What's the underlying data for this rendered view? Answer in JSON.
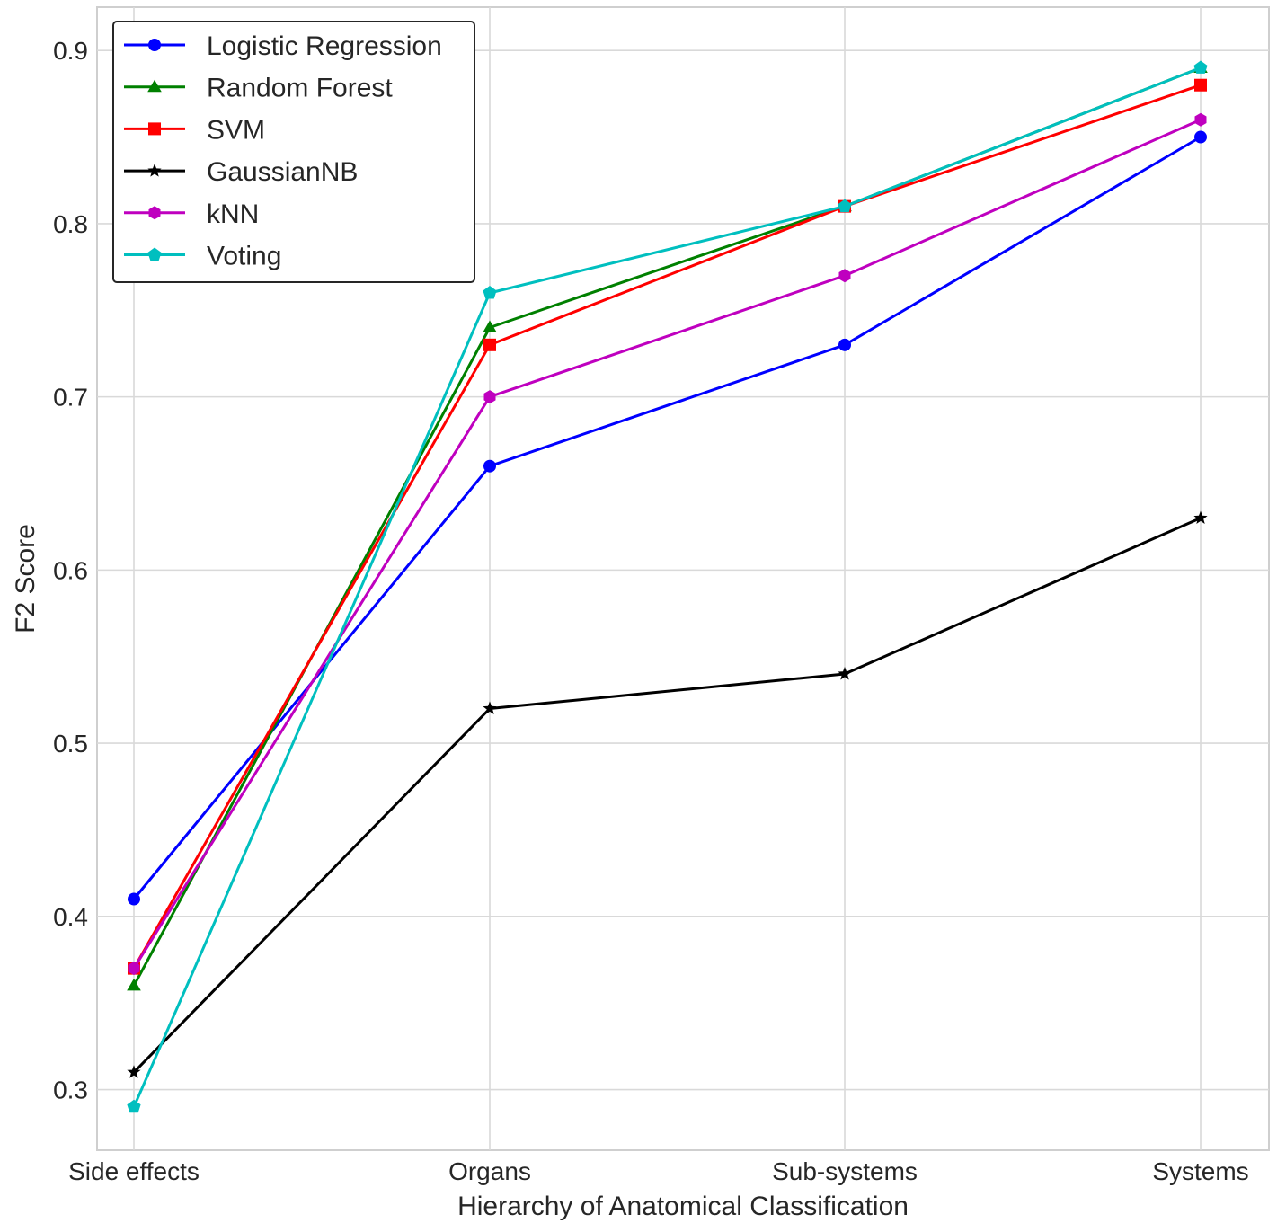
{
  "chart_data": {
    "type": "line",
    "categories": [
      "Side effects",
      "Organs",
      "Sub-systems",
      "Systems"
    ],
    "xlabel": "Hierarchy of Anatomical Classification",
    "ylabel": "F2 Score",
    "ylim": [
      0.265,
      0.925
    ],
    "yticks": [
      0.3,
      0.4,
      0.5,
      0.6,
      0.7,
      0.8,
      0.9
    ],
    "ytick_labels": [
      "0.3",
      "0.4",
      "0.5",
      "0.6",
      "0.7",
      "0.8",
      "0.9"
    ],
    "grid": true,
    "legend_position": "top-left",
    "series": [
      {
        "name": "Logistic Regression",
        "color": "#0000ff",
        "marker": "circle",
        "values": [
          0.41,
          0.66,
          0.73,
          0.85
        ]
      },
      {
        "name": "Random Forest",
        "color": "#008000",
        "marker": "triangle",
        "values": [
          0.36,
          0.74,
          0.81,
          0.89
        ]
      },
      {
        "name": "SVM",
        "color": "#ff0000",
        "marker": "square",
        "values": [
          0.37,
          0.73,
          0.81,
          0.88
        ]
      },
      {
        "name": "GaussianNB",
        "color": "#000000",
        "marker": "star",
        "values": [
          0.31,
          0.52,
          0.54,
          0.63
        ]
      },
      {
        "name": "kNN",
        "color": "#bf00bf",
        "marker": "hexagon",
        "values": [
          0.37,
          0.7,
          0.77,
          0.86
        ]
      },
      {
        "name": "Voting",
        "color": "#00bfbf",
        "marker": "pentagon",
        "values": [
          0.29,
          0.76,
          0.81,
          0.89
        ]
      }
    ]
  }
}
